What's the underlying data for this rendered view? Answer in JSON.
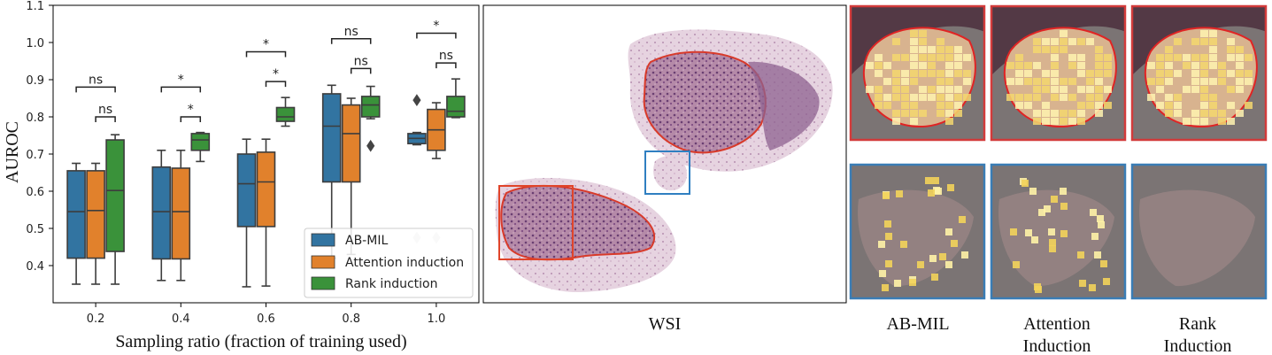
{
  "chart_data": {
    "type": "box",
    "ylabel": "AUROC",
    "xlabel": "Sampling ratio (fraction of training used)",
    "categories": [
      "0.2",
      "0.4",
      "0.6",
      "0.8",
      "1.0"
    ],
    "ylim": [
      0.3,
      1.1
    ],
    "yticks": [
      "0.4",
      "0.5",
      "0.6",
      "0.7",
      "0.8",
      "0.9",
      "1.0",
      "1.1"
    ],
    "grid": false,
    "legend_position": "lower-right",
    "series": [
      {
        "name": "AB-MIL",
        "color": "#3274a1",
        "boxes": [
          {
            "whislo": 0.35,
            "q1": 0.42,
            "med": 0.545,
            "q3": 0.655,
            "whishi": 0.675,
            "fliers": []
          },
          {
            "whislo": 0.36,
            "q1": 0.418,
            "med": 0.545,
            "q3": 0.665,
            "whishi": 0.71,
            "fliers": []
          },
          {
            "whislo": 0.343,
            "q1": 0.505,
            "med": 0.62,
            "q3": 0.7,
            "whishi": 0.74,
            "fliers": []
          },
          {
            "whislo": 0.42,
            "q1": 0.625,
            "med": 0.775,
            "q3": 0.862,
            "whishi": 0.885,
            "fliers": []
          },
          {
            "whislo": 0.725,
            "q1": 0.728,
            "med": 0.742,
            "q3": 0.755,
            "whishi": 0.758,
            "fliers": [
              0.845,
              0.475
            ]
          }
        ]
      },
      {
        "name": "Attention induction",
        "color": "#e1812c",
        "boxes": [
          {
            "whislo": 0.35,
            "q1": 0.42,
            "med": 0.548,
            "q3": 0.655,
            "whishi": 0.675,
            "fliers": []
          },
          {
            "whislo": 0.36,
            "q1": 0.418,
            "med": 0.545,
            "q3": 0.662,
            "whishi": 0.71,
            "fliers": []
          },
          {
            "whislo": 0.345,
            "q1": 0.505,
            "med": 0.625,
            "q3": 0.705,
            "whishi": 0.74,
            "fliers": []
          },
          {
            "whislo": 0.43,
            "q1": 0.625,
            "med": 0.755,
            "q3": 0.832,
            "whishi": 0.85,
            "fliers": []
          },
          {
            "whislo": 0.688,
            "q1": 0.71,
            "med": 0.765,
            "q3": 0.82,
            "whishi": 0.838,
            "fliers": [
              0.475
            ]
          }
        ]
      },
      {
        "name": "Rank induction",
        "color": "#3a923a",
        "boxes": [
          {
            "whislo": 0.35,
            "q1": 0.438,
            "med": 0.602,
            "q3": 0.738,
            "whishi": 0.752,
            "fliers": []
          },
          {
            "whislo": 0.68,
            "q1": 0.71,
            "med": 0.738,
            "q3": 0.755,
            "whishi": 0.758,
            "fliers": []
          },
          {
            "whislo": 0.775,
            "q1": 0.788,
            "med": 0.8,
            "q3": 0.825,
            "whishi": 0.852,
            "fliers": []
          },
          {
            "whislo": 0.795,
            "q1": 0.8,
            "med": 0.832,
            "q3": 0.855,
            "whishi": 0.882,
            "fliers": [
              0.722
            ]
          },
          {
            "whislo": 0.798,
            "q1": 0.8,
            "med": 0.815,
            "q3": 0.855,
            "whishi": 0.902,
            "fliers": []
          }
        ]
      }
    ],
    "annotations": [
      {
        "group": 0,
        "pair": "AB-MIL vs Rank induction",
        "label": "ns",
        "y": 0.88
      },
      {
        "group": 0,
        "pair": "Attention induction vs Rank induction",
        "label": "ns",
        "y": 0.8
      },
      {
        "group": 1,
        "pair": "AB-MIL vs Rank induction",
        "label": "*",
        "y": 0.88
      },
      {
        "group": 1,
        "pair": "Attention induction vs Rank induction",
        "label": "*",
        "y": 0.8
      },
      {
        "group": 2,
        "pair": "AB-MIL vs Rank induction",
        "label": "*",
        "y": 0.975
      },
      {
        "group": 2,
        "pair": "Attention induction vs Rank induction",
        "label": "*",
        "y": 0.895
      },
      {
        "group": 3,
        "pair": "AB-MIL vs Rank induction",
        "label": "ns",
        "y": 1.01
      },
      {
        "group": 3,
        "pair": "Attention induction vs Rank induction",
        "label": "ns",
        "y": 0.93
      },
      {
        "group": 4,
        "pair": "AB-MIL vs Rank induction",
        "label": "*",
        "y": 1.025
      },
      {
        "group": 4,
        "pair": "Attention induction vs Rank induction",
        "label": "ns",
        "y": 0.945
      }
    ]
  },
  "figure": {
    "wsi_caption": "WSI",
    "panel_captions": [
      [
        "AB-MIL"
      ],
      [
        "Attention",
        "Induction"
      ],
      [
        "Rank",
        "Induction"
      ]
    ],
    "colors": {
      "roi_red": "#e0442a",
      "roi_blue": "#2f7fc1",
      "border_red": "#d23b3b",
      "border_blue": "#3a7db5"
    }
  }
}
